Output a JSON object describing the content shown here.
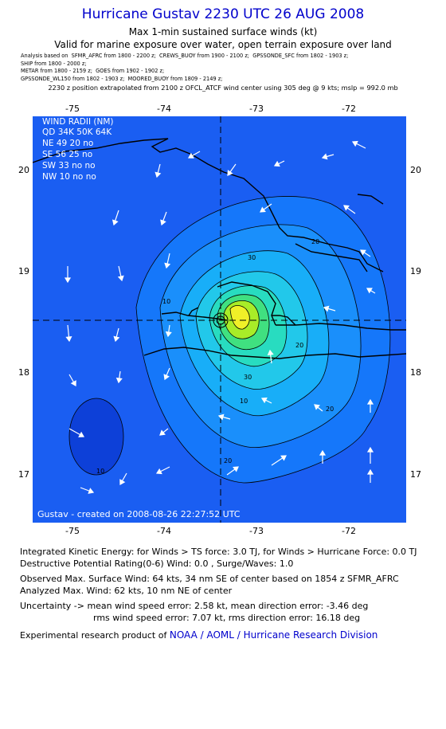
{
  "title": "Hurricane Gustav 2230 UTC 26 AUG 2008",
  "subtitle1": "Max 1-min sustained surface winds (kt)",
  "subtitle2": "Valid for marine exposure over water, open terrain exposure over land",
  "sources": [
    "Analysis based on  SFMR_AFRC from 1800 - 2200 z;  CREWS_BUOY from 1900 - 2100 z;  GPSSONDE_SFC from 1802 - 1903 z;",
    "SHIP from 1800 - 2000 z;",
    "METAR from 1800 - 2159 z;  GOES from 1902 - 1902 z;",
    "GPSSONDE_WL150 from 1802 - 1903 z;  MOORED_BUOY from 1809 - 2149 z;"
  ],
  "extrapolation": "2230 z position extrapolated from 2100 z OFCL_ATCF wind center using 305 deg @ 9 kts; mslp = 992.0 mb",
  "axes": {
    "x_ticks": [
      "-75",
      "-74",
      "-73",
      "-72"
    ],
    "y_ticks": [
      "20",
      "19",
      "18",
      "17"
    ]
  },
  "wind_radii": {
    "title": "WIND RADII (NM)",
    "header": "QD  34K  50K  64K",
    "rows": [
      "NE    49    20    no",
      "SE    56    25    no",
      "SW    33    no    no",
      "NW    10    no    no"
    ]
  },
  "contours": [
    "10",
    "20",
    "30",
    "20",
    "30",
    "10",
    "20",
    "20",
    "10"
  ],
  "credit": "Gustav - created on 2008-08-26 22:27:52 UTC",
  "footer": {
    "ike": "Integrated Kinetic Energy:  for Winds > TS force: 3.0 TJ,  for Winds > Hurricane Force: 0.0 TJ",
    "dpr": "Destructive Potential Rating(0-6)   Wind: 0.0 , Surge/Waves: 1.0",
    "obs_max": "Observed Max. Surface Wind: 64 kts, 34 nm SE of center based on 1854 z SFMR_AFRC",
    "ana_max": "Analyzed Max. Wind: 62 kts, 10 nm NE of center",
    "unc1": "Uncertainty -> mean wind speed error: 2.58 kt,   mean direction error:  -3.46 deg",
    "unc2": "rms wind speed error: 7.07 kt,   rms direction error: 16.18 deg",
    "exp_prefix": "Experimental research product of",
    "exp_org": "NOAA / AOML / Hurricane Research Division"
  }
}
